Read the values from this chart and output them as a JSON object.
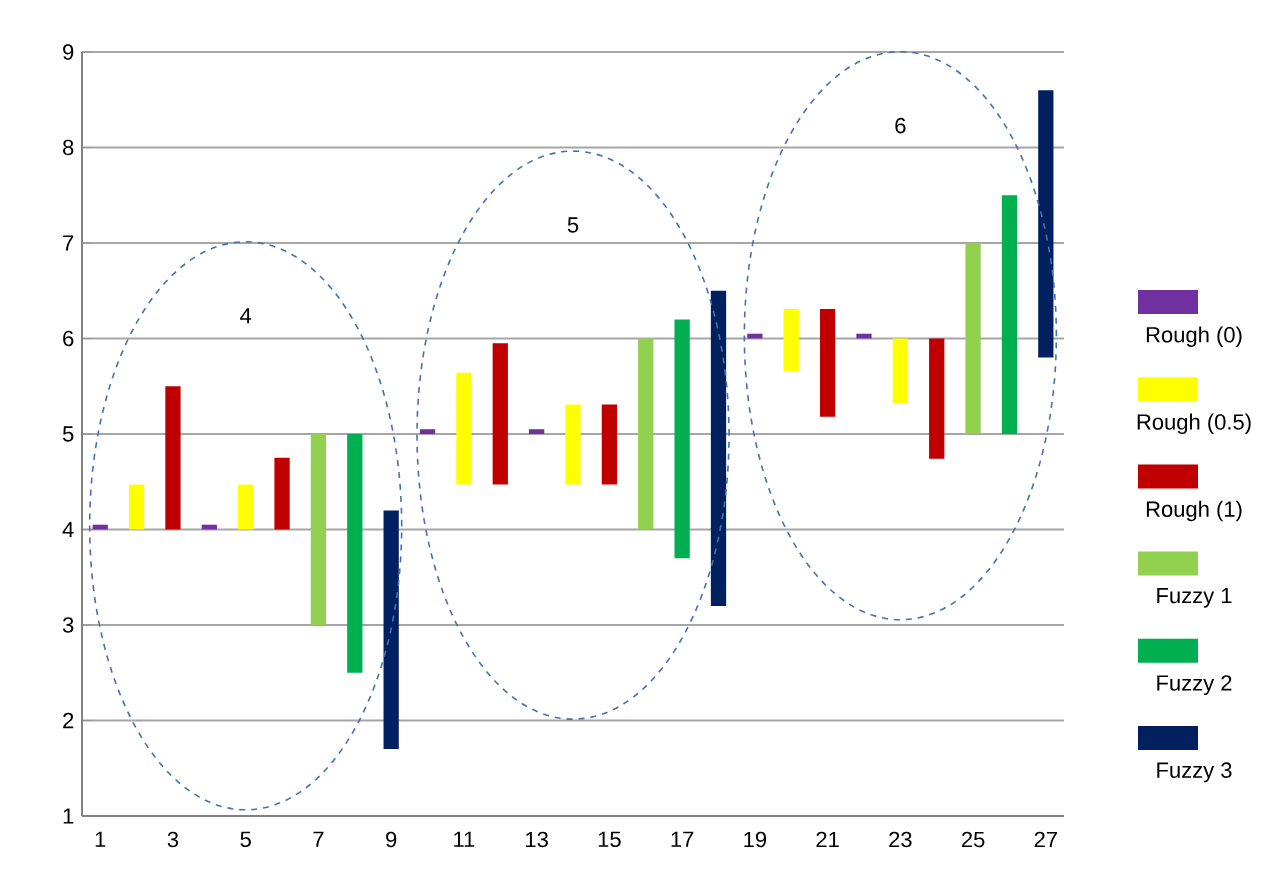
{
  "chart_data": {
    "type": "bar",
    "categories": [
      "1",
      null,
      "3",
      null,
      "5",
      null,
      "7",
      null,
      "9",
      null,
      "11",
      null,
      "13",
      null,
      "15",
      null,
      "17",
      null,
      "19",
      null,
      "21",
      null,
      "23",
      null,
      "25",
      null,
      "27"
    ],
    "series": [
      {
        "name": "Rough (0)",
        "color": "#7030a0",
        "values": [
          0.05,
          null,
          null,
          0.05,
          null,
          null,
          null,
          null,
          null,
          0.05,
          null,
          null,
          0.05,
          null,
          null,
          null,
          null,
          null,
          0.05,
          null,
          null,
          0.05,
          null,
          null,
          null,
          null,
          null
        ],
        "base": [
          4,
          null,
          null,
          4,
          null,
          null,
          null,
          null,
          null,
          5,
          null,
          null,
          5,
          null,
          null,
          null,
          null,
          null,
          6,
          null,
          null,
          6,
          null,
          null,
          null,
          null,
          null
        ]
      },
      {
        "name": "Rough (0.5)",
        "color": "#ffff00",
        "values": [
          null,
          0.47,
          null,
          null,
          0.47,
          null,
          null,
          null,
          null,
          null,
          1.17,
          null,
          null,
          0.84,
          null,
          null,
          null,
          null,
          null,
          0.65,
          null,
          null,
          0.68,
          null,
          null,
          null,
          null
        ],
        "base": [
          null,
          4,
          null,
          null,
          4,
          null,
          null,
          null,
          null,
          null,
          4.47,
          null,
          null,
          4.47,
          null,
          null,
          null,
          null,
          null,
          5.66,
          null,
          null,
          5.32,
          null,
          null,
          null,
          null
        ]
      },
      {
        "name": "Rough (1)",
        "color": "#c00000",
        "values": [
          null,
          null,
          1.5,
          null,
          null,
          0.75,
          null,
          null,
          null,
          null,
          null,
          1.48,
          null,
          null,
          0.84,
          null,
          null,
          null,
          null,
          null,
          1.13,
          null,
          null,
          1.26,
          null,
          null,
          null
        ],
        "base": [
          null,
          null,
          4,
          null,
          null,
          4,
          null,
          null,
          null,
          null,
          null,
          4.47,
          null,
          null,
          4.47,
          null,
          null,
          null,
          null,
          null,
          5.18,
          null,
          null,
          4.74,
          null,
          null,
          null
        ]
      },
      {
        "name": "Fuzzy 1",
        "color": "#92d050",
        "values": [
          null,
          null,
          null,
          null,
          null,
          null,
          2,
          null,
          null,
          null,
          null,
          null,
          null,
          null,
          null,
          2,
          null,
          null,
          null,
          null,
          null,
          null,
          null,
          null,
          2,
          null,
          null
        ],
        "base": [
          null,
          null,
          null,
          null,
          null,
          null,
          3,
          null,
          null,
          null,
          null,
          null,
          null,
          null,
          null,
          4,
          null,
          null,
          null,
          null,
          null,
          null,
          null,
          null,
          5,
          null,
          null
        ]
      },
      {
        "name": "Fuzzy 2",
        "color": "#00b050",
        "values": [
          null,
          null,
          null,
          null,
          null,
          null,
          null,
          2.5,
          null,
          null,
          null,
          null,
          null,
          null,
          null,
          null,
          2.5,
          null,
          null,
          null,
          null,
          null,
          null,
          null,
          null,
          2.5,
          null
        ],
        "base": [
          null,
          null,
          null,
          null,
          null,
          null,
          null,
          2.5,
          null,
          null,
          null,
          null,
          null,
          null,
          null,
          null,
          3.7,
          null,
          null,
          null,
          null,
          null,
          null,
          null,
          null,
          5,
          null
        ]
      },
      {
        "name": "Fuzzy 3",
        "color": "#002060",
        "values": [
          null,
          null,
          null,
          null,
          null,
          null,
          null,
          null,
          2.5,
          null,
          null,
          null,
          null,
          null,
          null,
          null,
          null,
          3.3,
          null,
          null,
          null,
          null,
          null,
          null,
          null,
          null,
          2.8
        ],
        "base": [
          null,
          null,
          null,
          null,
          null,
          null,
          null,
          null,
          1.7,
          null,
          null,
          null,
          null,
          null,
          null,
          null,
          null,
          3.2,
          null,
          null,
          null,
          null,
          null,
          null,
          null,
          null,
          5.8
        ]
      }
    ],
    "ylim": [
      1,
      9
    ],
    "yticks": [
      1,
      2,
      3,
      4,
      5,
      6,
      7,
      8,
      9
    ],
    "grid": "y",
    "legend": "right",
    "annotations": [
      "4",
      "5",
      "6"
    ]
  }
}
